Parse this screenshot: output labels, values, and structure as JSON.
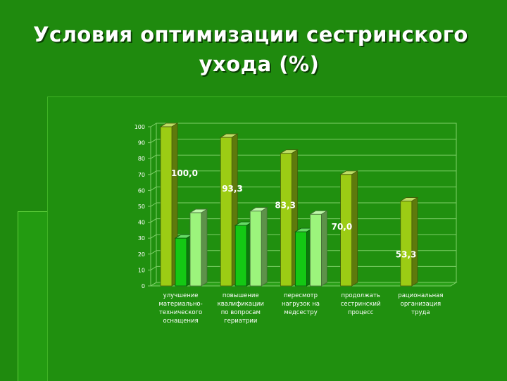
{
  "slide": {
    "title_line1": "Условия оптимизации сестринского",
    "title_line2": "ухода (%)"
  },
  "colors": {
    "background": "#1f8a0e",
    "series_a": "#9ccc14",
    "series_b": "#14c814",
    "series_c": "#9cf47c",
    "label_text": "#ffffff"
  },
  "chart_data": {
    "type": "bar",
    "title": "",
    "xlabel": "",
    "ylabel": "",
    "ylim": [
      0,
      100
    ],
    "yticks": [
      "0",
      "10",
      "20",
      "30",
      "40",
      "50",
      "60",
      "70",
      "80",
      "90",
      "100"
    ],
    "grid": true,
    "legend": "none",
    "categories": [
      [
        "улучшение",
        "материально-",
        "технического",
        "оснащения"
      ],
      [
        "повышение",
        "квалификации",
        "по вопросам",
        "гериатрии"
      ],
      [
        "пересмотр",
        "нагрузок на",
        "медсестру"
      ],
      [
        "продолжать",
        "сестринский",
        "процесс"
      ],
      [
        "рациональная",
        "организация",
        "труда"
      ]
    ],
    "series": [
      {
        "values": [
          100,
          93.3,
          83.3,
          70,
          53.3
        ],
        "labels": [
          "100,0",
          "93,3",
          "83,3",
          "70,0",
          "53,3"
        ]
      },
      {
        "values": [
          30,
          38,
          34,
          null,
          null
        ]
      },
      {
        "values": [
          46,
          47,
          45,
          null,
          null
        ]
      }
    ]
  }
}
